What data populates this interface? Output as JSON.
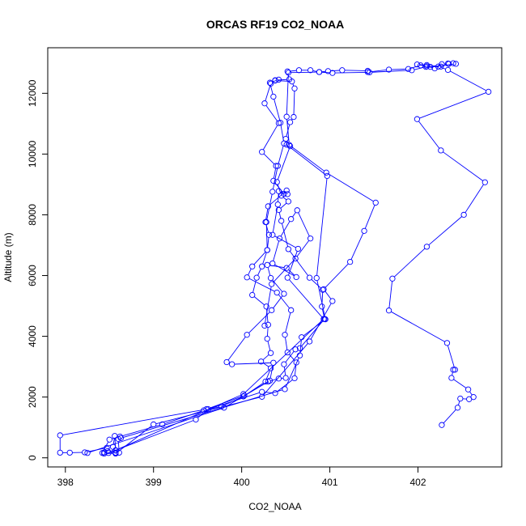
{
  "chart_data": {
    "type": "scatter",
    "title": "ORCAS RF19 CO2_NOAA",
    "xlabel": "CO2_NOAA",
    "ylabel": "Altitude (m)",
    "xlim": [
      397.8,
      402.95
    ],
    "ylim": [
      -300,
      13500
    ],
    "x_ticks": [
      398,
      399,
      400,
      401,
      402
    ],
    "y_ticks": [
      0,
      2000,
      4000,
      6000,
      8000,
      10000,
      12000
    ],
    "grid": false,
    "legend": "none",
    "marker": "open-circle",
    "connected": true,
    "color": "#0000ff",
    "series": [
      {
        "points": [
          [
            402.27,
            1080
          ],
          [
            402.45,
            1650
          ],
          [
            402.48,
            1950
          ],
          [
            402.58,
            1930
          ],
          [
            402.63,
            2000
          ],
          [
            402.57,
            2250
          ],
          [
            402.38,
            2630
          ],
          [
            402.4,
            2900
          ],
          [
            402.42,
            2900
          ],
          [
            402.33,
            3780
          ],
          [
            401.67,
            4850
          ],
          [
            401.71,
            5900
          ],
          [
            402.1,
            6950
          ],
          [
            402.52,
            8000
          ],
          [
            402.76,
            9070
          ],
          [
            402.26,
            10120
          ],
          [
            401.99,
            11150
          ],
          [
            402.8,
            12050
          ],
          [
            402.34,
            12770
          ],
          [
            402.23,
            12880
          ],
          [
            402.1,
            12930
          ],
          [
            401.99,
            12950
          ],
          [
            402.1,
            12890
          ],
          [
            402.19,
            12820
          ],
          [
            402.27,
            12960
          ],
          [
            402.34,
            12980
          ],
          [
            402.4,
            12990
          ],
          [
            402.43,
            12970
          ],
          [
            402.14,
            12870
          ],
          [
            402.03,
            12920
          ],
          [
            401.89,
            12800
          ],
          [
            401.67,
            12780
          ],
          [
            401.43,
            12700
          ],
          [
            401.43,
            12740
          ],
          [
            401.14,
            12760
          ],
          [
            400.98,
            12730
          ],
          [
            400.88,
            12700
          ],
          [
            400.78,
            12760
          ],
          [
            400.65,
            12760
          ],
          [
            400.52,
            12720
          ],
          [
            400.54,
            12460
          ],
          [
            400.38,
            12430
          ],
          [
            400.33,
            12320
          ],
          [
            400.26,
            11670
          ],
          [
            400.42,
            11020
          ],
          [
            400.23,
            10070
          ],
          [
            400.39,
            9610
          ],
          [
            400.36,
            9120
          ],
          [
            400.48,
            8690
          ],
          [
            400.51,
            8800
          ],
          [
            400.3,
            8280
          ],
          [
            400.27,
            7760
          ],
          [
            400.31,
            7340
          ],
          [
            400.29,
            6840
          ],
          [
            400.23,
            6300
          ],
          [
            400.17,
            5930
          ],
          [
            400.12,
            5360
          ],
          [
            400.28,
            4980
          ],
          [
            400.3,
            4380
          ],
          [
            400.29,
            3920
          ],
          [
            400.33,
            3450
          ],
          [
            400.22,
            3170
          ],
          [
            400.33,
            2950
          ],
          [
            400.27,
            2510
          ],
          [
            400.02,
            2020
          ],
          [
            399.77,
            1690
          ],
          [
            399.57,
            1560
          ],
          [
            399.1,
            1100
          ],
          [
            398.62,
            700
          ],
          [
            398.5,
            600
          ],
          [
            398.42,
            160
          ],
          [
            398.44,
            180
          ],
          [
            398.57,
            170
          ],
          [
            398.54,
            360
          ],
          [
            398.56,
            720
          ],
          [
            398.57,
            240
          ],
          [
            398.48,
            220
          ],
          [
            398.47,
            330
          ],
          [
            398.22,
            180
          ],
          [
            398.05,
            170
          ],
          [
            397.94,
            170
          ],
          [
            397.94,
            740
          ],
          [
            399.6,
            1600
          ],
          [
            400.03,
            2050
          ],
          [
            400.3,
            2510
          ],
          [
            400.42,
            2610
          ],
          [
            400.5,
            2630
          ],
          [
            400.48,
            3080
          ],
          [
            400.61,
            3570
          ],
          [
            400.66,
            3610
          ],
          [
            400.94,
            4570
          ],
          [
            400.91,
            4980
          ],
          [
            400.92,
            5530
          ],
          [
            400.77,
            5930
          ],
          [
            400.53,
            6870
          ],
          [
            400.45,
            7800
          ],
          [
            400.42,
            8160
          ],
          [
            400.53,
            8440
          ],
          [
            400.45,
            8630
          ],
          [
            400.4,
            9080
          ],
          [
            400.55,
            10260
          ],
          [
            400.5,
            10500
          ],
          [
            400.55,
            11050
          ],
          [
            400.59,
            11220
          ],
          [
            400.6,
            12160
          ],
          [
            400.57,
            12390
          ],
          [
            400.38,
            12420
          ],
          [
            400.42,
            12450
          ],
          [
            400.32,
            12350
          ],
          [
            400.36,
            11890
          ],
          [
            400.44,
            11030
          ],
          [
            400.48,
            10350
          ],
          [
            400.41,
            9610
          ],
          [
            400.35,
            8760
          ],
          [
            400.28,
            7760
          ],
          [
            400.29,
            6840
          ],
          [
            400.12,
            6300
          ],
          [
            400.06,
            5940
          ],
          [
            400.4,
            5440
          ],
          [
            400.56,
            4860
          ],
          [
            400.49,
            4050
          ],
          [
            400.52,
            3470
          ],
          [
            400.62,
            3140
          ],
          [
            400.6,
            2620
          ],
          [
            400.38,
            2130
          ],
          [
            400.23,
            2170
          ],
          [
            399.62,
            1600
          ],
          [
            399.48,
            1260
          ],
          [
            398.49,
            160
          ],
          [
            398.44,
            140
          ],
          [
            398.57,
            150
          ],
          [
            398.61,
            170
          ],
          [
            398.6,
            620
          ]
        ]
      },
      {
        "points": [
          [
            398.57,
            250
          ],
          [
            400.02,
            2100
          ],
          [
            400.93,
            4570
          ],
          [
            400.52,
            5930
          ],
          [
            400.64,
            6880
          ],
          [
            400.35,
            7340
          ],
          [
            400.41,
            8340
          ],
          [
            400.42,
            8780
          ],
          [
            400.52,
            8680
          ]
        ]
      },
      {
        "points": [
          [
            398.25,
            160
          ],
          [
            399.8,
            1650
          ],
          [
            400.32,
            2540
          ],
          [
            400.36,
            3130
          ],
          [
            399.89,
            3080
          ],
          [
            399.83,
            3150
          ],
          [
            400.06,
            4050
          ],
          [
            400.34,
            4860
          ],
          [
            400.48,
            5400
          ],
          [
            400.33,
            5920
          ],
          [
            400.29,
            6350
          ],
          [
            400.51,
            6250
          ],
          [
            400.62,
            5950
          ],
          [
            400.35,
            6400
          ],
          [
            400.43,
            7220
          ],
          [
            400.56,
            7860
          ],
          [
            400.63,
            8150
          ],
          [
            400.78,
            7220
          ],
          [
            400.61,
            6560
          ],
          [
            400.34,
            5720
          ],
          [
            400.26,
            4350
          ]
        ]
      },
      {
        "points": [
          [
            398.63,
            650
          ],
          [
            400.49,
            2260
          ],
          [
            400.66,
            3370
          ],
          [
            400.68,
            3970
          ],
          [
            400.95,
            4560
          ],
          [
            400.85,
            5920
          ],
          [
            400.97,
            9280
          ],
          [
            400.51,
            10310
          ]
        ]
      },
      {
        "points": [
          [
            398.57,
            140
          ],
          [
            399.0,
            1100
          ],
          [
            400.23,
            2010
          ],
          [
            400.77,
            3830
          ],
          [
            401.03,
            5160
          ],
          [
            400.93,
            5550
          ],
          [
            401.23,
            6450
          ],
          [
            401.39,
            7470
          ],
          [
            401.52,
            8400
          ],
          [
            400.96,
            9390
          ],
          [
            400.54,
            10300
          ],
          [
            400.51,
            11230
          ],
          [
            400.53,
            12680
          ],
          [
            400.88,
            12700
          ],
          [
            401.03,
            12670
          ],
          [
            401.45,
            12690
          ],
          [
            401.93,
            12760
          ],
          [
            402.09,
            12870
          ],
          [
            402.26,
            12880
          ],
          [
            402.35,
            12970
          ]
        ]
      }
    ]
  }
}
